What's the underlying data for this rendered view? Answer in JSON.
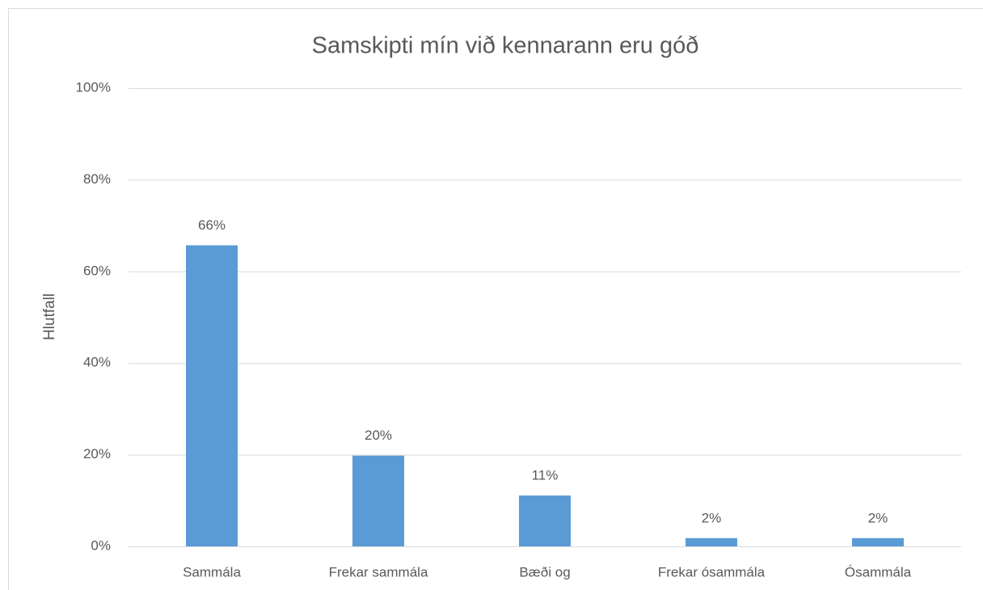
{
  "chart_data": {
    "type": "bar",
    "title": "Samskipti mín við kennarann eru góð",
    "y_label": "Hlutfall",
    "categories": [
      "Sammála",
      "Frekar sammála",
      "Bæði og",
      "Frekar ósammála",
      "Ósammála"
    ],
    "values": [
      65.7,
      19.8,
      11.1,
      1.8,
      1.8
    ],
    "value_labels": [
      "66%",
      "20%",
      "11%",
      "2%",
      "2%"
    ],
    "color": "#5b9bd5",
    "ylim": [
      0,
      100
    ],
    "yticks": [
      {
        "value": 0,
        "label": "0%"
      },
      {
        "value": 20,
        "label": "20%"
      },
      {
        "value": 40,
        "label": "40%"
      },
      {
        "value": 60,
        "label": "60%"
      },
      {
        "value": 80,
        "label": "80%"
      },
      {
        "value": 100,
        "label": "100%"
      }
    ],
    "grid": true
  }
}
